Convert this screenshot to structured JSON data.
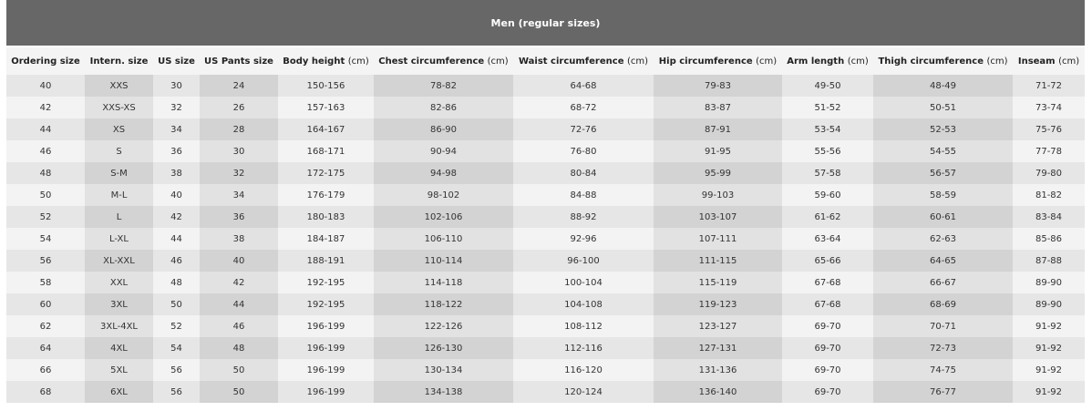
{
  "table": {
    "title": "Men (regular sizes)",
    "columns": [
      {
        "label": "Ordering size"
      },
      {
        "label": "Intern. size"
      },
      {
        "label": "US size"
      },
      {
        "label": "US Pants size"
      },
      {
        "label": "Body height",
        "unit": "(cm)"
      },
      {
        "label": "Chest circumference",
        "unit": "(cm)"
      },
      {
        "label": "Waist circumference",
        "unit": "(cm)"
      },
      {
        "label": "Hip circumference",
        "unit": "(cm)"
      },
      {
        "label": "Arm length",
        "unit": "(cm)"
      },
      {
        "label": "Thigh circumference",
        "unit": "(cm)"
      },
      {
        "label": "Inseam",
        "unit": "(cm)"
      }
    ],
    "rows": [
      [
        "40",
        "XXS",
        "30",
        "24",
        "150-156",
        "78-82",
        "64-68",
        "79-83",
        "49-50",
        "48-49",
        "71-72"
      ],
      [
        "42",
        "XXS-XS",
        "32",
        "26",
        "157-163",
        "82-86",
        "68-72",
        "83-87",
        "51-52",
        "50-51",
        "73-74"
      ],
      [
        "44",
        "XS",
        "34",
        "28",
        "164-167",
        "86-90",
        "72-76",
        "87-91",
        "53-54",
        "52-53",
        "75-76"
      ],
      [
        "46",
        "S",
        "36",
        "30",
        "168-171",
        "90-94",
        "76-80",
        "91-95",
        "55-56",
        "54-55",
        "77-78"
      ],
      [
        "48",
        "S-M",
        "38",
        "32",
        "172-175",
        "94-98",
        "80-84",
        "95-99",
        "57-58",
        "56-57",
        "79-80"
      ],
      [
        "50",
        "M-L",
        "40",
        "34",
        "176-179",
        "98-102",
        "84-88",
        "99-103",
        "59-60",
        "58-59",
        "81-82"
      ],
      [
        "52",
        "L",
        "42",
        "36",
        "180-183",
        "102-106",
        "88-92",
        "103-107",
        "61-62",
        "60-61",
        "83-84"
      ],
      [
        "54",
        "L-XL",
        "44",
        "38",
        "184-187",
        "106-110",
        "92-96",
        "107-111",
        "63-64",
        "62-63",
        "85-86"
      ],
      [
        "56",
        "XL-XXL",
        "46",
        "40",
        "188-191",
        "110-114",
        "96-100",
        "111-115",
        "65-66",
        "64-65",
        "87-88"
      ],
      [
        "58",
        "XXL",
        "48",
        "42",
        "192-195",
        "114-118",
        "100-104",
        "115-119",
        "67-68",
        "66-67",
        "89-90"
      ],
      [
        "60",
        "3XL",
        "50",
        "44",
        "192-195",
        "118-122",
        "104-108",
        "119-123",
        "67-68",
        "68-69",
        "89-90"
      ],
      [
        "62",
        "3XL-4XL",
        "52",
        "46",
        "196-199",
        "122-126",
        "108-112",
        "123-127",
        "69-70",
        "70-71",
        "91-92"
      ],
      [
        "64",
        "4XL",
        "54",
        "48",
        "196-199",
        "126-130",
        "112-116",
        "127-131",
        "69-70",
        "72-73",
        "91-92"
      ],
      [
        "66",
        "5XL",
        "56",
        "50",
        "196-199",
        "130-134",
        "116-120",
        "131-136",
        "69-70",
        "74-75",
        "91-92"
      ],
      [
        "68",
        "6XL",
        "56",
        "50",
        "196-199",
        "134-138",
        "120-124",
        "136-140",
        "69-70",
        "76-77",
        "91-92"
      ]
    ]
  }
}
